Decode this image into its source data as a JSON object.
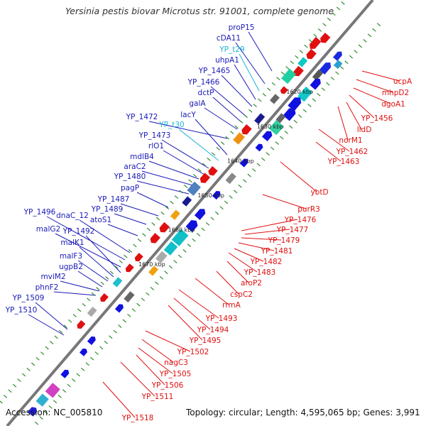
{
  "title": "Yersinia pestis biovar Microtus str. 91001, complete genome",
  "footer": {
    "accession": "Accession: NC_005810",
    "topology": "Topology: circular; Length: 4,595,065 bp; Genes: 3,991"
  },
  "colors": {
    "backbone": "#777777",
    "blue_label": "#1a1ab8",
    "cyan_label": "#1fb4d8",
    "red_label": "#e01010",
    "tick_green": "#2e8b2e"
  },
  "kbp_ticks": [
    "1620 kbp",
    "1630 kbp",
    "1640 kbp",
    "1650 kbp",
    "1660 kbp",
    "1670 kbp"
  ],
  "genes_left": [
    {
      "label": "proP15",
      "type": "blue"
    },
    {
      "label": "cDA11",
      "type": "blue"
    },
    {
      "label": "YP_t29",
      "type": "cyan"
    },
    {
      "label": "uhpA1",
      "type": "blue"
    },
    {
      "label": "YP_1465",
      "type": "blue"
    },
    {
      "label": "YP_1466",
      "type": "blue"
    },
    {
      "label": "dctP",
      "type": "blue"
    },
    {
      "label": "galA",
      "type": "blue"
    },
    {
      "label": "YP_1472",
      "type": "blue"
    },
    {
      "label": "lacY",
      "type": "blue"
    },
    {
      "label": "YP_t30",
      "type": "cyan"
    },
    {
      "label": "YP_1473",
      "type": "blue"
    },
    {
      "label": "rlO1",
      "type": "blue"
    },
    {
      "label": "mdlB4",
      "type": "blue"
    },
    {
      "label": "araC2",
      "type": "blue"
    },
    {
      "label": "YP_1480",
      "type": "blue"
    },
    {
      "label": "pagP",
      "type": "blue"
    },
    {
      "label": "YP_1487",
      "type": "blue"
    },
    {
      "label": "YP_1489",
      "type": "blue"
    },
    {
      "label": "YP_1496",
      "type": "blue"
    },
    {
      "label": "dnaC_12",
      "type": "blue"
    },
    {
      "label": "atoS1",
      "type": "blue"
    },
    {
      "label": "malG2",
      "type": "blue"
    },
    {
      "label": "YP_1492",
      "type": "blue"
    },
    {
      "label": "malK1",
      "type": "blue"
    },
    {
      "label": "malF3",
      "type": "blue"
    },
    {
      "label": "ugpB2",
      "type": "blue"
    },
    {
      "label": "mviM2",
      "type": "blue"
    },
    {
      "label": "phnF2",
      "type": "blue"
    },
    {
      "label": "YP_1509",
      "type": "blue"
    },
    {
      "label": "YP_1510",
      "type": "blue"
    }
  ],
  "genes_right": [
    {
      "label": "ucpA"
    },
    {
      "label": "mhpD2"
    },
    {
      "label": "dgoA1"
    },
    {
      "label": "YP_1456"
    },
    {
      "label": "lldD"
    },
    {
      "label": "norM1"
    },
    {
      "label": "YP_1462"
    },
    {
      "label": "YP_1463"
    },
    {
      "label": "ybtD"
    },
    {
      "label": "purR3"
    },
    {
      "label": "YP_1476"
    },
    {
      "label": "YP_1477"
    },
    {
      "label": "YP_1479"
    },
    {
      "label": "YP_1481"
    },
    {
      "label": "YP_1482"
    },
    {
      "label": "YP_1483"
    },
    {
      "label": "aroP2"
    },
    {
      "label": "cspC2"
    },
    {
      "label": "rrmA"
    },
    {
      "label": "YP_1493"
    },
    {
      "label": "YP_1494"
    },
    {
      "label": "YP_1495"
    },
    {
      "label": "YP_1502"
    },
    {
      "label": "nagC3"
    },
    {
      "label": "YP_1505"
    },
    {
      "label": "YP_1506"
    },
    {
      "label": "YP_1511"
    },
    {
      "label": "YP_1518"
    }
  ]
}
